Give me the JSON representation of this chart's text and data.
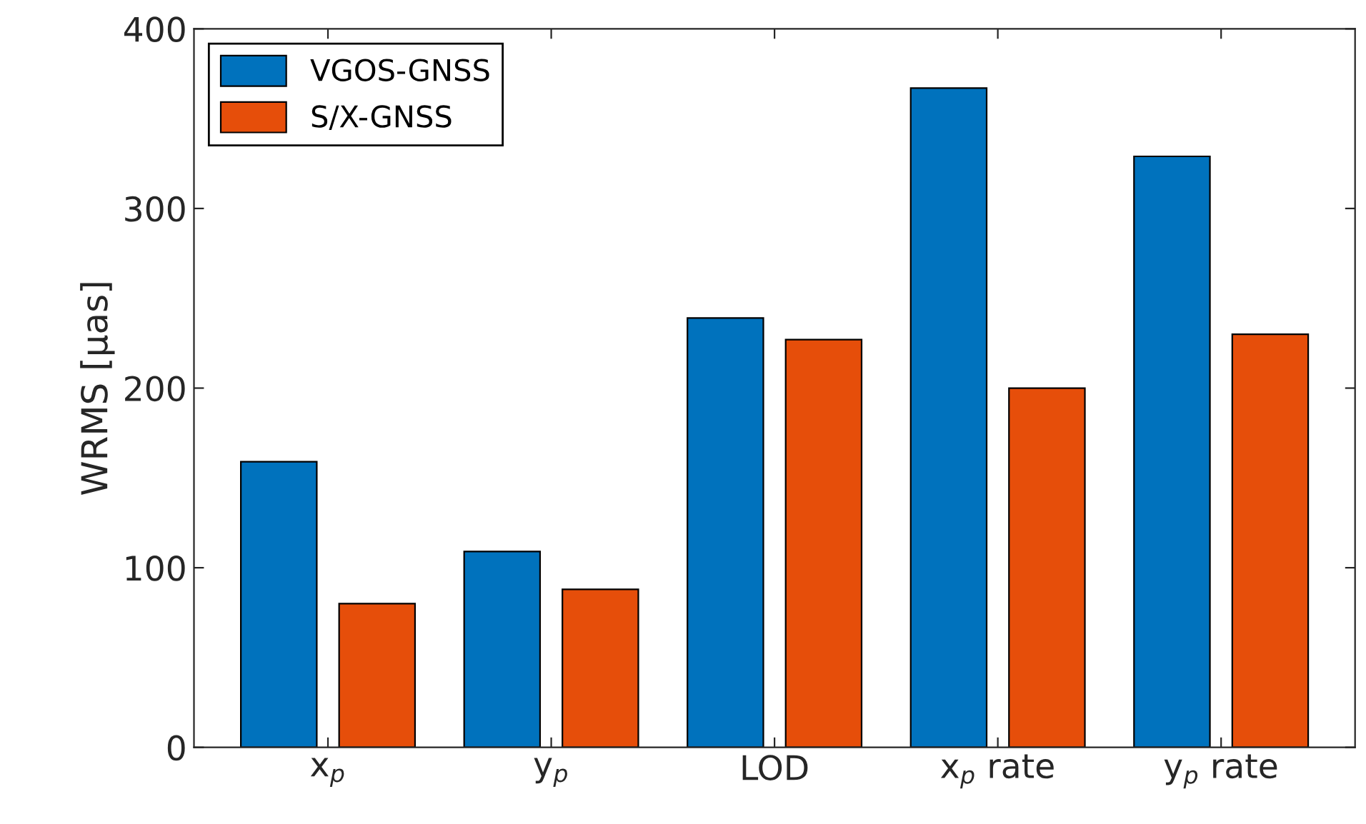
{
  "chart_data": {
    "type": "bar",
    "ylabel": "WRMS [μas]",
    "categories": [
      "x$_{p}$",
      "y$_{p}$",
      "LOD",
      "x$_{p}$ rate",
      "y$_{p}$ rate"
    ],
    "series": [
      {
        "name": "VGOS-GNSS",
        "color": "#0072bd",
        "values": [
          159,
          109,
          239,
          367,
          329
        ]
      },
      {
        "name": "S/X-GNSS",
        "color": "#e64e0a",
        "values": [
          80,
          88,
          227,
          200,
          230
        ]
      }
    ],
    "ylim": [
      0,
      400
    ],
    "yticks": [
      0,
      100,
      200,
      300,
      400
    ],
    "grid": false,
    "legend": "top left"
  }
}
